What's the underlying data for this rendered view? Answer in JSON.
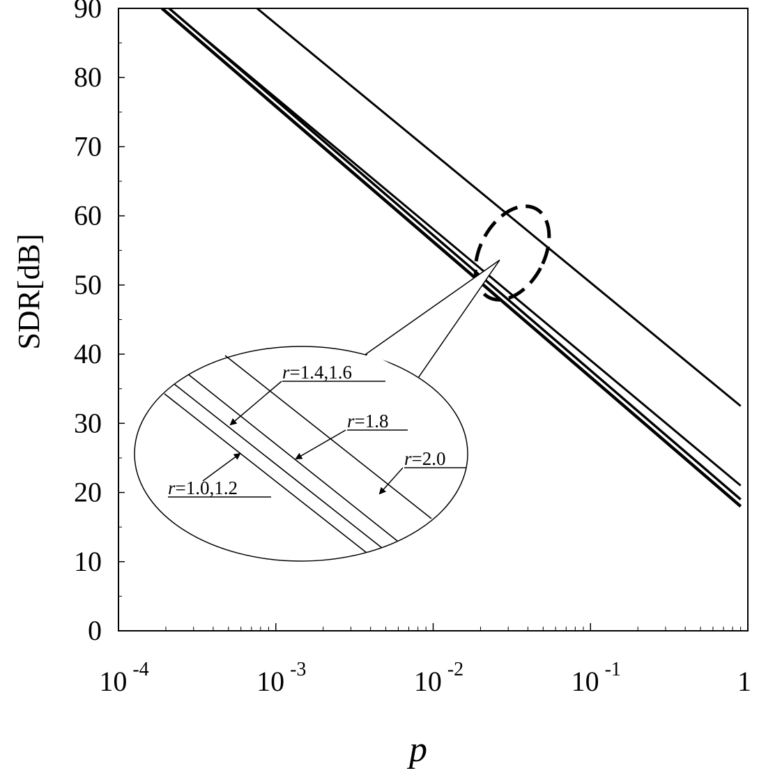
{
  "chart_data": {
    "type": "line",
    "title": "",
    "xlabel": "p",
    "ylabel": "SDR[dB]",
    "xscale": "log",
    "xlim": [
      0.0001,
      1
    ],
    "ylim": [
      0,
      90
    ],
    "x_ticks": [
      {
        "value": 0.0001,
        "base": "10",
        "exp": "-4"
      },
      {
        "value": 0.001,
        "base": "10",
        "exp": "-3"
      },
      {
        "value": 0.01,
        "base": "10",
        "exp": "-2"
      },
      {
        "value": 0.1,
        "base": "10",
        "exp": "-1"
      },
      {
        "value": 1,
        "base": "1",
        "exp": ""
      }
    ],
    "y_ticks": [
      0,
      10,
      20,
      30,
      40,
      50,
      60,
      70,
      80,
      90
    ],
    "grid": false,
    "legend": "none",
    "series": [
      {
        "name": "r=1.0,1.2",
        "x": [
          0.000189,
          0.9
        ],
        "y": [
          90,
          18.0
        ]
      },
      {
        "name": "r=1.4,1.6",
        "x": [
          0.00021,
          0.9
        ],
        "y": [
          90,
          19.0
        ]
      },
      {
        "name": "r=1.8",
        "x": [
          0.00025,
          0.9
        ],
        "y": [
          88.5,
          21.0
        ]
      },
      {
        "name": "r=2.0",
        "x": [
          0.00076,
          0.9
        ],
        "y": [
          90,
          32.5
        ]
      }
    ],
    "zoom_annotations": [
      {
        "label": "r=1.0,1.2"
      },
      {
        "label": "r=1.4,1.6"
      },
      {
        "label": "r=1.8"
      },
      {
        "label": "r=2.0"
      }
    ]
  }
}
